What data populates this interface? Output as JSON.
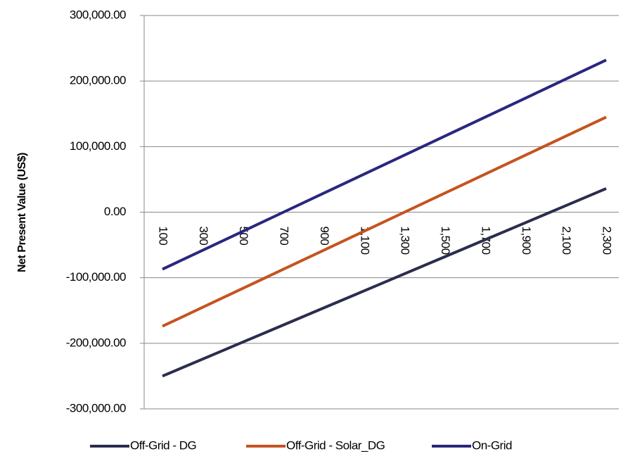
{
  "chart_data": {
    "type": "line",
    "y_label": "Net Present Value (US$)",
    "categories": [
      "100",
      "300",
      "500",
      "700",
      "900",
      "1,100",
      "1,300",
      "1,500",
      "1,700",
      "1,900",
      "2,100",
      "2,300"
    ],
    "series": [
      {
        "name": "Off-Grid - DG",
        "color": "#2b2d4e",
        "values": [
          -250000,
          -224000,
          -198000,
          -172000,
          -146000,
          -120000,
          -94000,
          -68000,
          -42000,
          -16000,
          10000,
          36000
        ]
      },
      {
        "name": "Off-Grid - Solar_DG",
        "color": "#c5531f",
        "values": [
          -174000,
          -145000,
          -116000,
          -87000,
          -58000,
          -29000,
          0,
          29000,
          58000,
          87000,
          116000,
          145000
        ]
      },
      {
        "name": "On-Grid",
        "color": "#29277f",
        "values": [
          -87000,
          -58000,
          -29000,
          0,
          29000,
          58000,
          87000,
          116000,
          145000,
          174000,
          203000,
          232000
        ]
      }
    ],
    "ylim": [
      -300000,
      300000
    ],
    "yticks": [
      {
        "value": -300000,
        "label": "-300,000.00"
      },
      {
        "value": -200000,
        "label": "-200,000.00"
      },
      {
        "value": -100000,
        "label": "-100,000.00"
      },
      {
        "value": 0,
        "label": "0.00"
      },
      {
        "value": 100000,
        "label": "100,000.00"
      },
      {
        "value": 200000,
        "label": "200,000.00"
      },
      {
        "value": 300000,
        "label": "300,000.00"
      }
    ],
    "grid": true,
    "legend": "bottom"
  }
}
